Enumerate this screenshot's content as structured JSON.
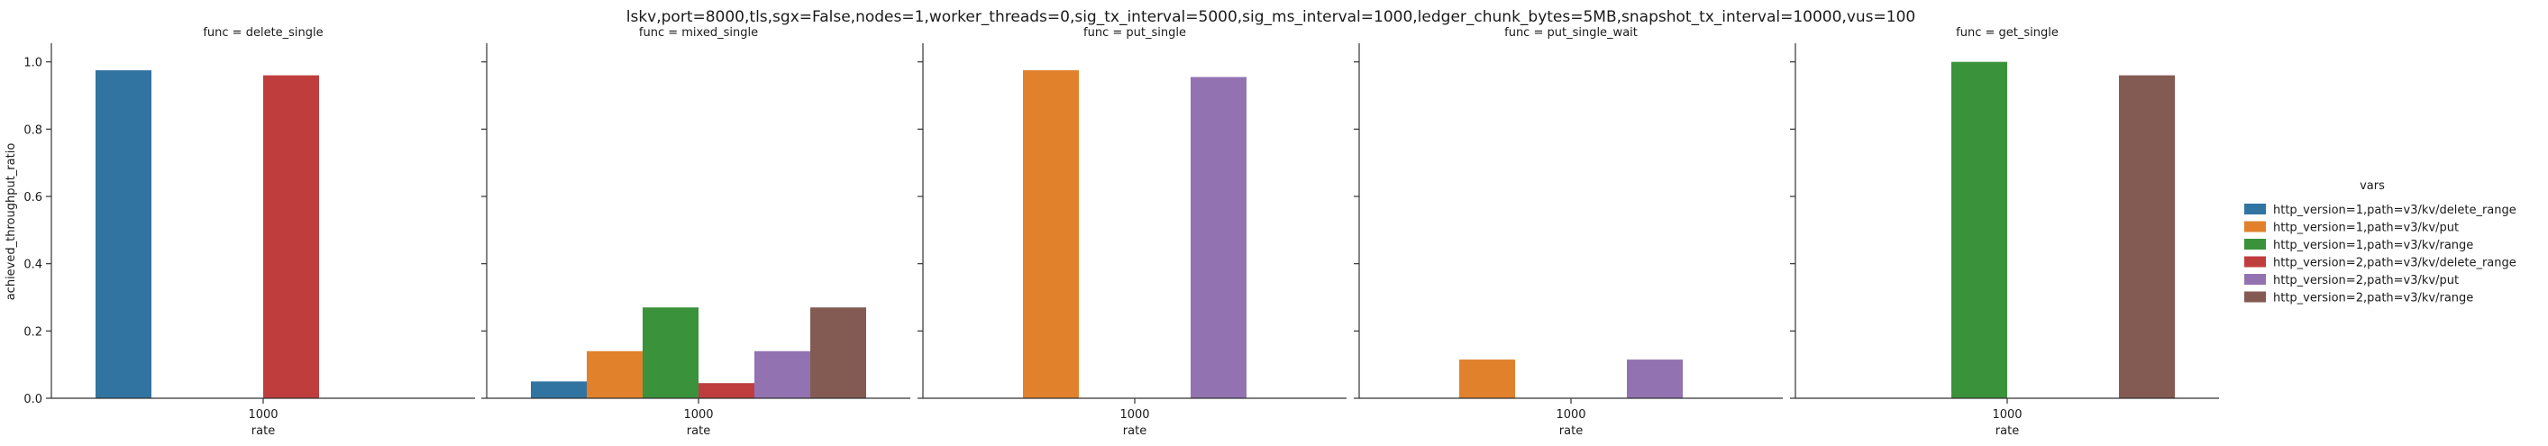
{
  "suptitle": "lskv,port=8000,tls,sgx=False,nodes=1,worker_threads=0,sig_tx_interval=5000,sig_ms_interval=1000,ledger_chunk_bytes=5MB,snapshot_tx_interval=10000,vus=100",
  "chart_data": {
    "type": "bar",
    "ylabel": "achieved_throughput_ratio",
    "xlabel": "rate",
    "ylim": [
      0,
      1.05
    ],
    "yticks": [
      "0.0",
      "0.2",
      "0.4",
      "0.6",
      "0.8",
      "1.0"
    ],
    "categories": [
      "1000"
    ],
    "legend": {
      "title": "vars",
      "placement": "right",
      "entries": [
        {
          "name": "http_version=1,path=v3/kv/delete_range",
          "color": "#3274a1"
        },
        {
          "name": "http_version=1,path=v3/kv/put",
          "color": "#e1812c"
        },
        {
          "name": "http_version=1,path=v3/kv/range",
          "color": "#3a923a"
        },
        {
          "name": "http_version=2,path=v3/kv/delete_range",
          "color": "#c03d3e"
        },
        {
          "name": "http_version=2,path=v3/kv/put",
          "color": "#9372b2"
        },
        {
          "name": "http_version=2,path=v3/kv/range",
          "color": "#845b53"
        }
      ]
    },
    "facets": [
      {
        "title": "func = delete_single",
        "values": [
          0.975,
          null,
          null,
          0.96,
          null,
          null
        ]
      },
      {
        "title": "func = mixed_single",
        "values": [
          0.05,
          0.14,
          0.27,
          0.045,
          0.14,
          0.27
        ]
      },
      {
        "title": "func = put_single",
        "values": [
          null,
          0.975,
          null,
          null,
          0.955,
          null
        ]
      },
      {
        "title": "func = put_single_wait",
        "values": [
          null,
          0.115,
          null,
          null,
          0.115,
          null
        ]
      },
      {
        "title": "func = get_single",
        "values": [
          null,
          null,
          1.0,
          null,
          null,
          0.96
        ]
      }
    ]
  }
}
